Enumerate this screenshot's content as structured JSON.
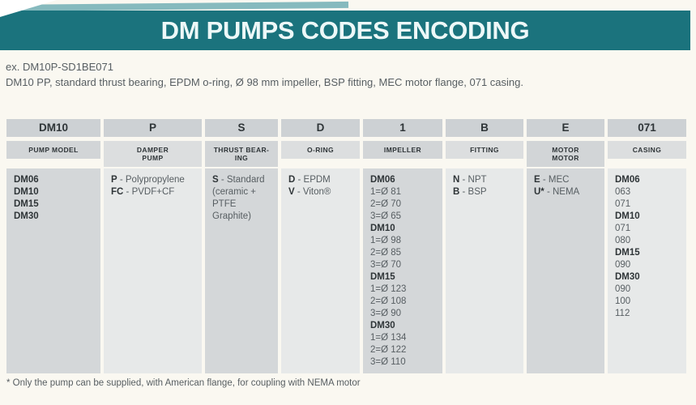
{
  "header": {
    "title": "DM PUMPS CODES ENCODING"
  },
  "example": {
    "line1": "ex. DM10P-SD1BE071",
    "line2": "DM10 PP, standard thrust bearing, EPDM o-ring, Ø 98 mm impeller, BSP fitting, MEC motor flange, 071 casing."
  },
  "table": {
    "columns": [
      {
        "code": "DM10",
        "label": "PUMP MODEL",
        "lines": [
          {
            "b": "DM06"
          },
          {
            "b": "DM10"
          },
          {
            "b": "DM15"
          },
          {
            "b": "DM30"
          }
        ]
      },
      {
        "code": "P",
        "label": "DAMPER\nPUMP",
        "lines": [
          {
            "b": "P",
            "t": " - Polypropylene"
          },
          {
            "b": "FC",
            "t": " - PVDF+CF"
          }
        ]
      },
      {
        "code": "S",
        "label": "THRUST BEAR-\nING",
        "lines": [
          {
            "b": "S",
            "t": " - Standard"
          },
          {
            "t": "(ceramic +"
          },
          {
            "t": "PTFE Graphite)"
          }
        ]
      },
      {
        "code": "D",
        "label": "O-RING",
        "lines": [
          {
            "b": "D",
            "t": " - EPDM"
          },
          {
            "b": "V",
            "t": " - Viton®"
          }
        ]
      },
      {
        "code": "1",
        "label": "IMPELLER",
        "lines": [
          {
            "b": "DM06"
          },
          {
            "t": "1=Ø 81"
          },
          {
            "t": "2=Ø 70"
          },
          {
            "t": "3=Ø 65"
          },
          {
            "b": "DM10"
          },
          {
            "t": "1=Ø 98"
          },
          {
            "t": "2=Ø 85"
          },
          {
            "t": "3=Ø 70"
          },
          {
            "b": "DM15"
          },
          {
            "t": "1=Ø 123"
          },
          {
            "t": "2=Ø 108"
          },
          {
            "t": "3=Ø 90"
          },
          {
            "b": "DM30"
          },
          {
            "t": "1=Ø 134"
          },
          {
            "t": "2=Ø 122"
          },
          {
            "t": "3=Ø 110"
          }
        ]
      },
      {
        "code": "B",
        "label": "FITTING",
        "lines": [
          {
            "b": "N",
            "t": " - NPT"
          },
          {
            "b": "B",
            "t": " - BSP"
          }
        ]
      },
      {
        "code": "E",
        "label": "MOTOR\nMOTOR",
        "lines": [
          {
            "b": "E",
            "t": " - MEC"
          },
          {
            "b": "U*",
            "t": " - NEMA"
          }
        ]
      },
      {
        "code": "071",
        "label": "CASING",
        "lines": [
          {
            "b": "DM06"
          },
          {
            "t": "063"
          },
          {
            "t": "071"
          },
          {
            "b": "DM10"
          },
          {
            "t": "071"
          },
          {
            "t": "080"
          },
          {
            "b": "DM15"
          },
          {
            "t": "090"
          },
          {
            "b": "DM30"
          },
          {
            "t": "090"
          },
          {
            "t": "100"
          },
          {
            "t": "112"
          }
        ]
      }
    ]
  },
  "footnote": "* Only the pump can be supplied, with American flange, for coupling with NEMA motor",
  "colors": {
    "teal": "#1b737d",
    "tealLight": "#86babe",
    "titleText": "#edf8f8",
    "pageBg": "#faf8f1",
    "headerGray": "#cdd1d4",
    "labelDark": "#d2d5d7",
    "labelLight": "#dcdedf",
    "cellDark": "#d4d7d9",
    "cellLight": "#e7e9e9",
    "textDark": "#2f3538",
    "textBody": "#575e62"
  }
}
